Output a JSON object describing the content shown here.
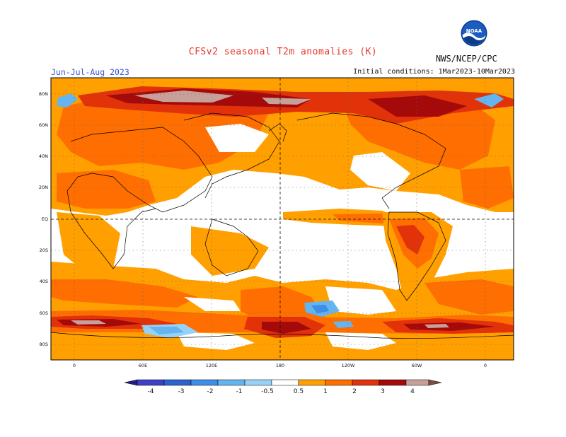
{
  "header": {
    "title": "CFSv2 seasonal T2m anomalies (K)",
    "season": "Jun-Jul-Aug 2023",
    "initial_conditions": "Initial conditions: 1Mar2023-10Mar2023",
    "agency": "NWS/NCEP/CPC",
    "logo_text": "NOAA"
  },
  "map": {
    "lat_labels": [
      "80N",
      "60N",
      "40N",
      "20N",
      "EQ",
      "20S",
      "40S",
      "60S",
      "80S"
    ],
    "lon_labels": [
      "0",
      "60E",
      "120E",
      "180",
      "120W",
      "60W",
      "0"
    ]
  },
  "colorbar": {
    "labels": [
      "-4",
      "-3",
      "-2",
      "-1",
      "-0.5",
      "0.5",
      "1",
      "2",
      "3",
      "4"
    ],
    "colors": [
      "#1e1e8c",
      "#3f3fc8",
      "#2a64cc",
      "#3c8ee6",
      "#64b4f0",
      "#96d2f8",
      "#ffffff",
      "#ffa000",
      "#ff6e00",
      "#e1320a",
      "#a50a0a",
      "#c8a09a",
      "#785046"
    ]
  },
  "colors": {
    "title": "#e8352a",
    "season": "#3355cc",
    "warm_05": "#ffa000",
    "warm_1": "#ff6e00",
    "warm_2": "#e1320a",
    "warm_3": "#a50a0a",
    "warm_4": "#c8a09a",
    "cool_05": "#96d2f8",
    "cool_1": "#64b4f0"
  }
}
